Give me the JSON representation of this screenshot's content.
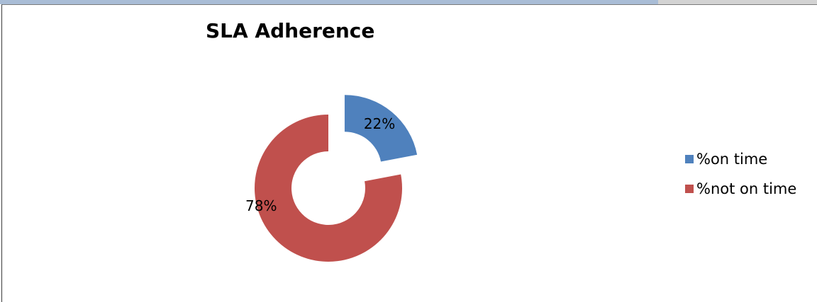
{
  "chart_data": {
    "type": "pie",
    "variant": "exploded-doughnut",
    "title": "SLA Adherence",
    "series": [
      {
        "name": "%on time",
        "value": 22,
        "label": "22%",
        "color": "#4f81bd"
      },
      {
        "name": "%not on time",
        "value": 78,
        "label": "78%",
        "color": "#c0504d"
      }
    ],
    "legend_position": "right"
  }
}
